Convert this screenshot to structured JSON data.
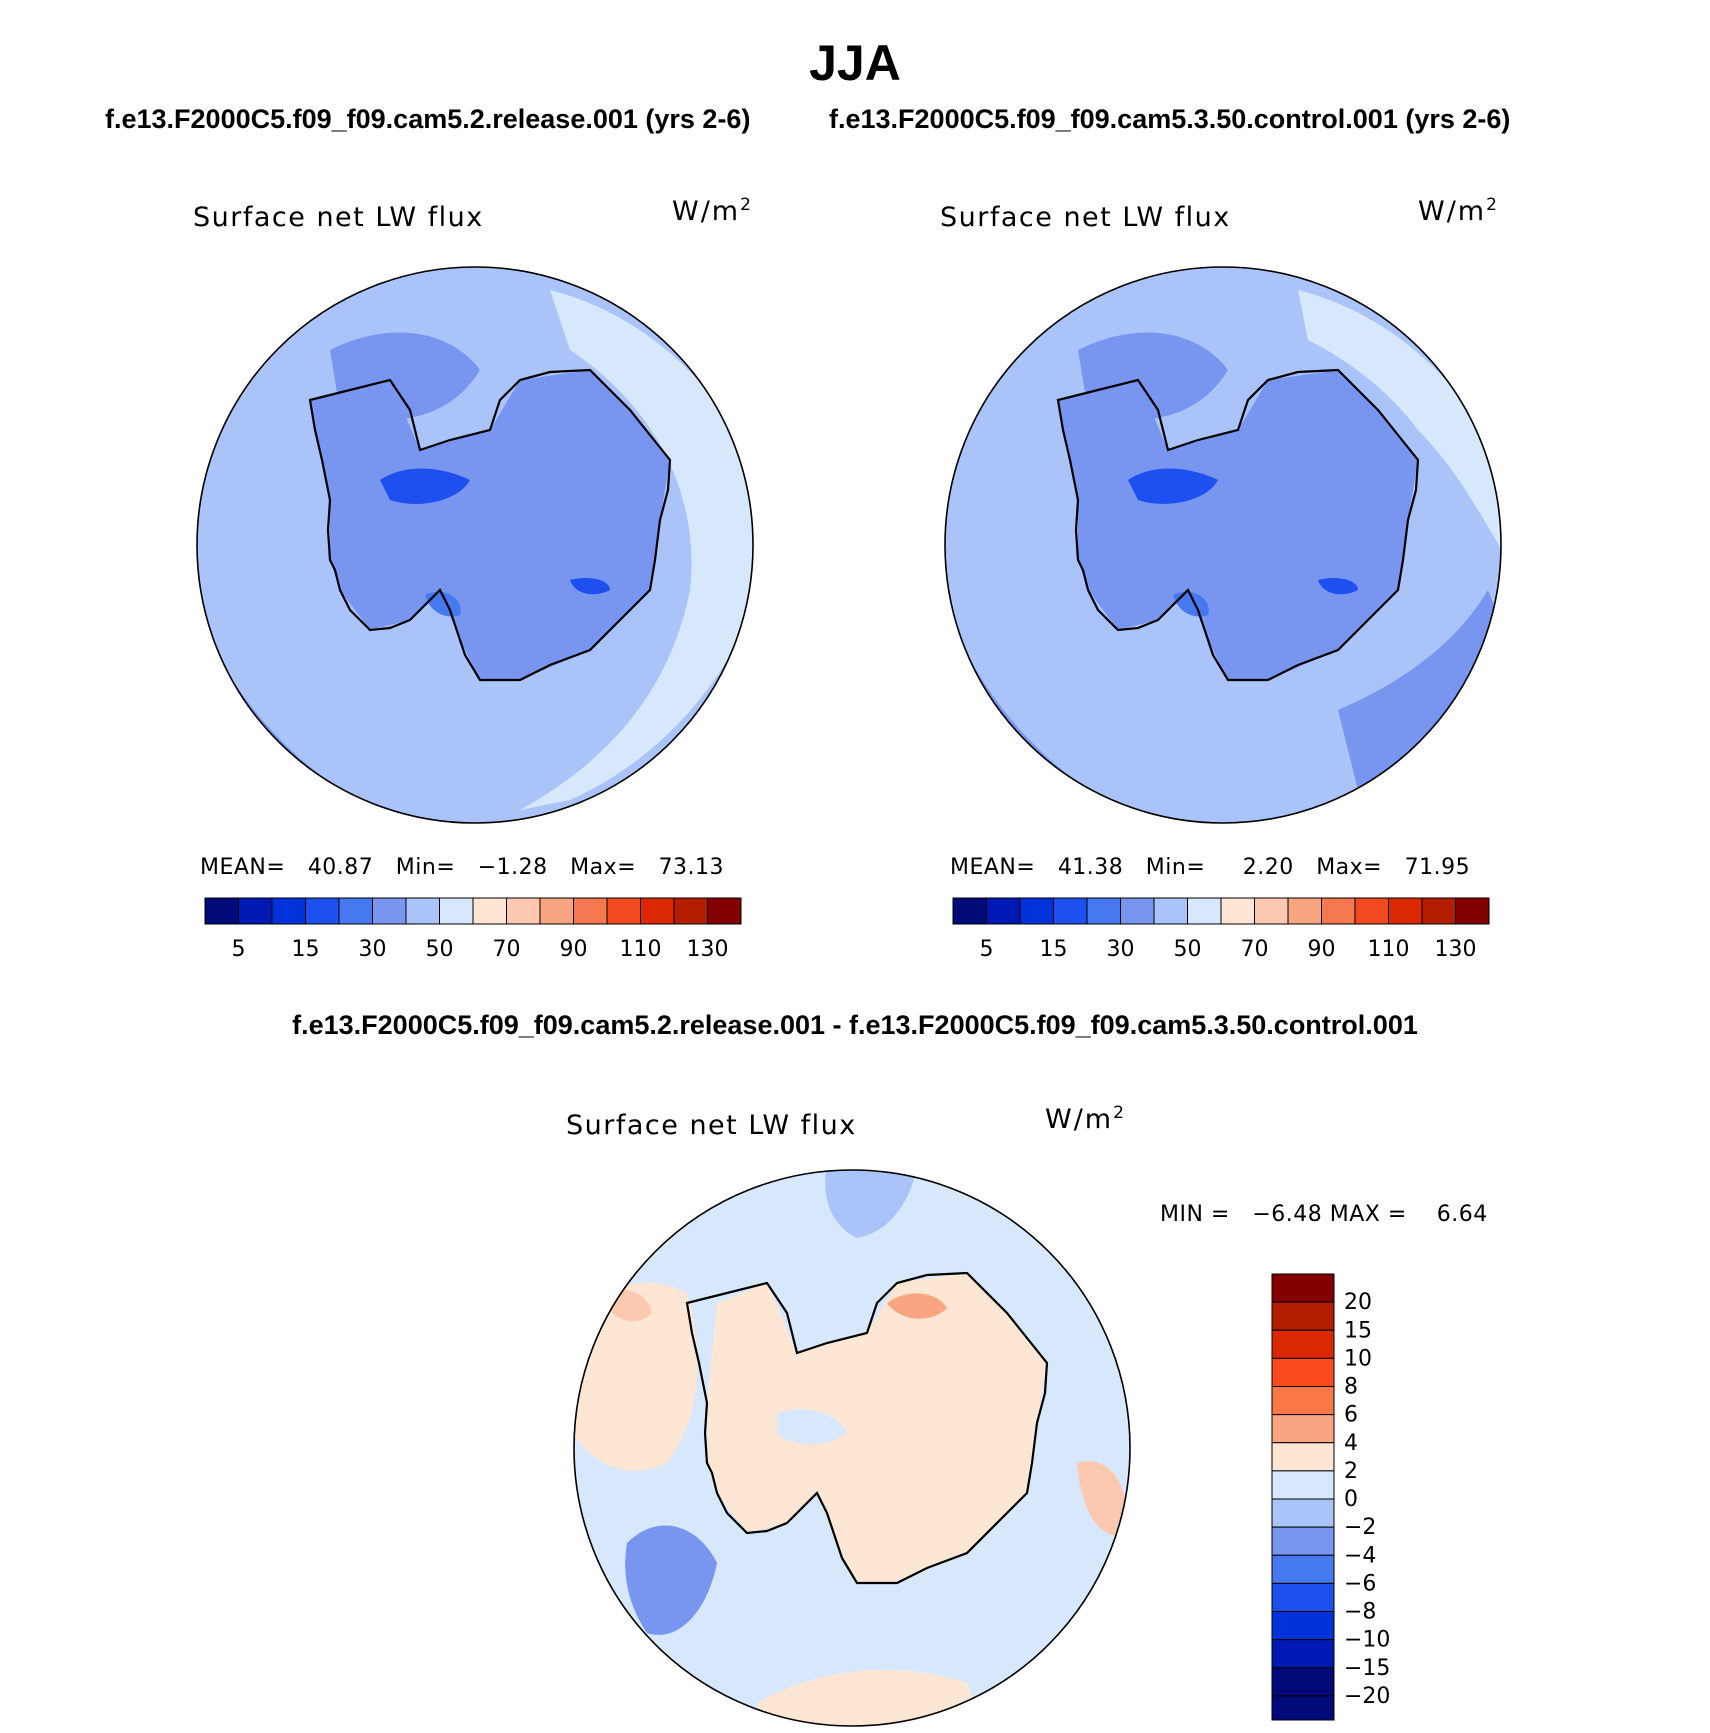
{
  "figure": {
    "season": "JJA",
    "case1_header": "f.e13.F2000C5.f09_f09.cam5.2.release.001 (yrs 2-6)",
    "case2_header": "f.e13.F2000C5.f09_f09.cam5.3.50.control.001 (yrs 2-6)",
    "diff_header": "f.e13.F2000C5.f09_f09.cam5.2.release.001 - f.e13.F2000C5.f09_f09.cam5.3.50.control.001"
  },
  "chart_data": [
    {
      "type": "heatmap",
      "projection": "south-polar-stereographic",
      "title": "Surface net LW flux",
      "units": "W/m",
      "units_sup": "2",
      "stats": {
        "mean_label": "MEAN=",
        "mean": "40.87",
        "min_label": "Min=",
        "min": "−1.28",
        "max_label": "Max=",
        "max": "73.13"
      },
      "colorbar": {
        "orientation": "horizontal",
        "colors": [
          "#000a78",
          "#0019b4",
          "#0032dc",
          "#1e50f0",
          "#4678f0",
          "#7896f0",
          "#aac3f8",
          "#d7e8fc",
          "#fde6d4",
          "#fcc8b0",
          "#faa582",
          "#f57850",
          "#f04a1e",
          "#dc2800",
          "#b41e00",
          "#820000"
        ],
        "tick_labels": [
          "5",
          "15",
          "30",
          "50",
          "70",
          "90",
          "110",
          "130"
        ]
      }
    },
    {
      "type": "heatmap",
      "projection": "south-polar-stereographic",
      "title": "Surface net LW flux",
      "units": "W/m",
      "units_sup": "2",
      "stats": {
        "mean_label": "MEAN=",
        "mean": "41.38",
        "min_label": "Min=",
        "min": "2.20",
        "max_label": "Max=",
        "max": "71.95"
      },
      "colorbar": {
        "orientation": "horizontal",
        "colors": [
          "#000a78",
          "#0019b4",
          "#0032dc",
          "#1e50f0",
          "#4678f0",
          "#7896f0",
          "#aac3f8",
          "#d7e8fc",
          "#fde6d4",
          "#fcc8b0",
          "#faa582",
          "#f57850",
          "#f04a1e",
          "#dc2800",
          "#b41e00",
          "#820000"
        ],
        "tick_labels": [
          "5",
          "15",
          "30",
          "50",
          "70",
          "90",
          "110",
          "130"
        ]
      }
    },
    {
      "type": "heatmap",
      "projection": "south-polar-stereographic",
      "title": "Surface net LW flux",
      "units": "W/m",
      "units_sup": "2",
      "stats": {
        "min_label": "MIN =",
        "min": "−6.48",
        "max_label": "MAX =",
        "max": "6.64"
      },
      "colorbar": {
        "orientation": "vertical",
        "colors_top_to_bottom": [
          "#820000",
          "#b41e00",
          "#dc2800",
          "#fa4a1e",
          "#fa7846",
          "#faa582",
          "#fde6d4",
          "#d7e8fc",
          "#aac3f8",
          "#7896f0",
          "#4678f0",
          "#1e50f0",
          "#0032dc",
          "#0019b4",
          "#000a78"
        ],
        "tick_labels": [
          "20",
          "15",
          "10",
          "8",
          "6",
          "4",
          "2",
          "0",
          "−2",
          "−4",
          "−6",
          "−8",
          "−10",
          "−15",
          "−20"
        ]
      }
    }
  ]
}
